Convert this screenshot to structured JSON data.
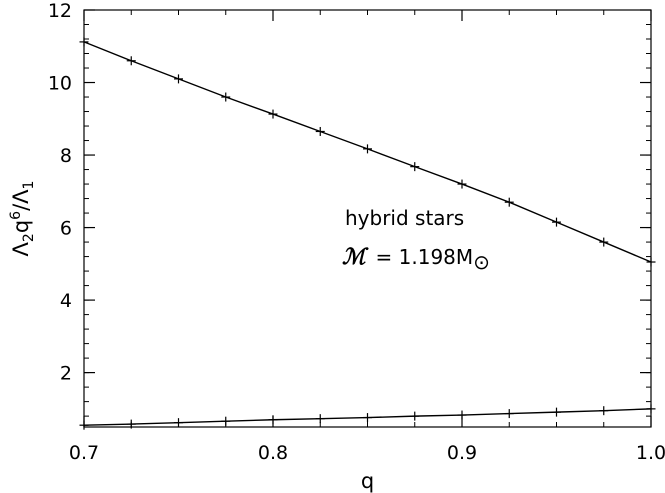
{
  "chart_data": {
    "type": "line",
    "xlabel": "q",
    "ylabel": {
      "parts": [
        "Λ",
        "2",
        "q",
        "6",
        "/Λ",
        "1"
      ]
    },
    "xlim": [
      0.7,
      1.0
    ],
    "ylim": [
      0.5,
      12
    ],
    "x_ticks": [
      "0.7",
      "0.8",
      "0.9",
      "1.0"
    ],
    "y_ticks": [
      "2",
      "4",
      "6",
      "8",
      "10",
      "12"
    ],
    "x_tick_values": [
      0.7,
      0.8,
      0.9,
      1.0
    ],
    "y_tick_values": [
      2,
      4,
      6,
      8,
      10,
      12
    ],
    "x_minor_step": 0.025,
    "y_minor_step": 0.4,
    "grid": false,
    "marker": "plus",
    "series": [
      {
        "x": [
          0.7,
          0.725,
          0.75,
          0.775,
          0.8,
          0.825,
          0.85,
          0.875,
          0.9,
          0.925,
          0.95,
          0.975,
          1.0
        ],
        "values": [
          11.12,
          10.6,
          10.1,
          9.6,
          9.13,
          8.65,
          8.17,
          7.68,
          7.2,
          6.7,
          6.15,
          5.6,
          5.05
        ]
      },
      {
        "x": [
          0.7,
          0.725,
          0.75,
          0.775,
          0.8,
          0.825,
          0.85,
          0.875,
          0.9,
          0.925,
          0.95,
          0.975,
          1.0
        ],
        "values": [
          0.55,
          0.58,
          0.62,
          0.66,
          0.7,
          0.73,
          0.76,
          0.8,
          0.83,
          0.87,
          0.91,
          0.95,
          1.0
        ]
      }
    ],
    "annotations": {
      "line1": "hybrid stars",
      "line2_symbol": "ℳ",
      "line2_text": "= 1.198M",
      "line2_sub": "⊙"
    }
  }
}
